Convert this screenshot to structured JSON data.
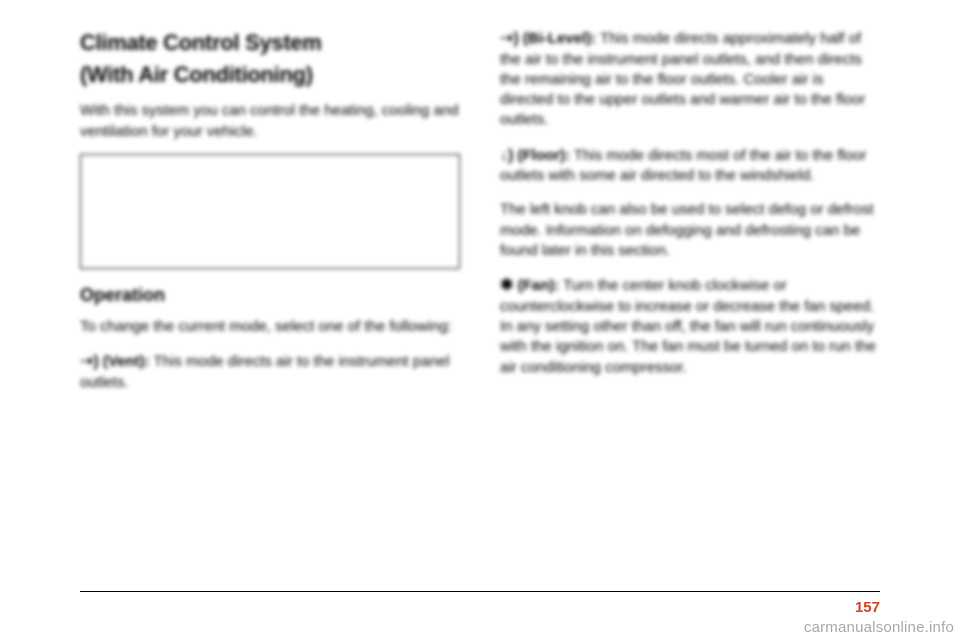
{
  "leftColumn": {
    "title1": "Climate Control System",
    "title2": "(With Air Conditioning)",
    "intro": "With this system you can control the heating, cooling and ventilation for your vehicle.",
    "subheading": "Operation",
    "leadIn": "To change the current mode, select one of the following:",
    "ventLabel": "(Vent):",
    "ventText": "This mode directs air to the instrument panel outlets."
  },
  "rightColumn": {
    "biLabel": "(Bi-Level):",
    "biText": "This mode directs approximately half of the air to the instrument panel outlets, and then directs the remaining air to the floor outlets. Cooler air is directed to the upper outlets and warmer air to the floor outlets.",
    "floorLabel": "(Floor):",
    "floorText": "This mode directs most of the air to the floor outlets with some air directed to the windshield.",
    "defogNote": "The left knob can also be used to select defog or defrost mode. Information on defogging and defrosting can be found later in this section.",
    "fanLabel": "(Fan):",
    "fanText": "Turn the center knob clockwise or counterclockwise to increase or decrease the fan speed. In any setting other than off, the fan will run continuously with the ignition on. The fan must be turned on to run the air conditioning compressor."
  },
  "icons": {
    "vent": "➝)",
    "bilevel": "➝)",
    "floor": "↓)",
    "fan": "✱"
  },
  "pageNumber": "157",
  "watermark": "carmanualsonline.info",
  "colors": {
    "pageNumber": "#d04028",
    "watermark": "rgba(0,0,0,0.35)",
    "text": "#000000",
    "background": "#ffffff"
  }
}
